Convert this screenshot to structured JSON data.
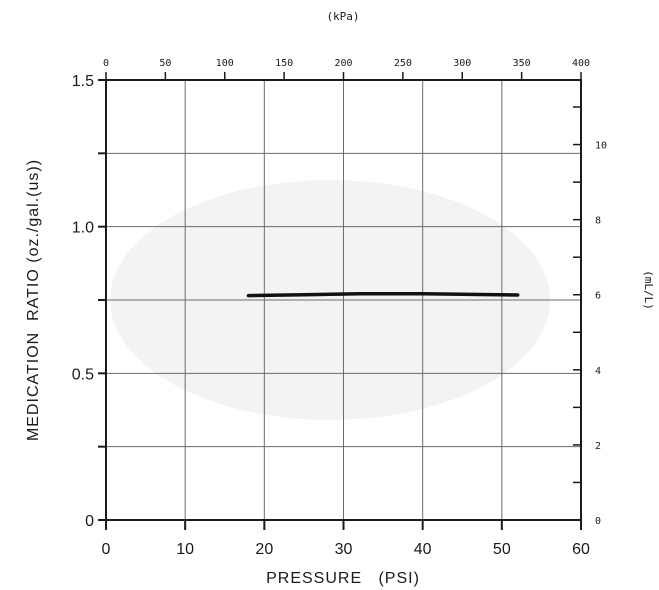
{
  "chart_data": {
    "type": "line",
    "title": "",
    "xlabel": "PRESSURE   (PSI)",
    "ylabel": "MEDICATION  RATIO (oz./gal.(us))",
    "x2label": "(kPa)",
    "y2label": "(mL/L)",
    "xlim": [
      0,
      60
    ],
    "ylim": [
      0,
      1.5
    ],
    "x2lim": [
      0,
      400
    ],
    "y2lim": [
      0,
      11.72
    ],
    "grid": true,
    "x_ticks": [
      "0",
      "10",
      "20",
      "30",
      "40",
      "50",
      "60"
    ],
    "y_ticks": [
      "0",
      "0.5",
      "1.0",
      "1.5"
    ],
    "x2_ticks": [
      "0",
      "50",
      "100",
      "150",
      "200",
      "250",
      "300",
      "350",
      "400"
    ],
    "y2_ticks": [
      "0",
      "2",
      "4",
      "6",
      "8",
      "10"
    ],
    "series": [
      {
        "name": "",
        "x": [
          18,
          25,
          32,
          40,
          46,
          52
        ],
        "y": [
          0.765,
          0.768,
          0.771,
          0.771,
          0.769,
          0.767
        ]
      }
    ]
  }
}
